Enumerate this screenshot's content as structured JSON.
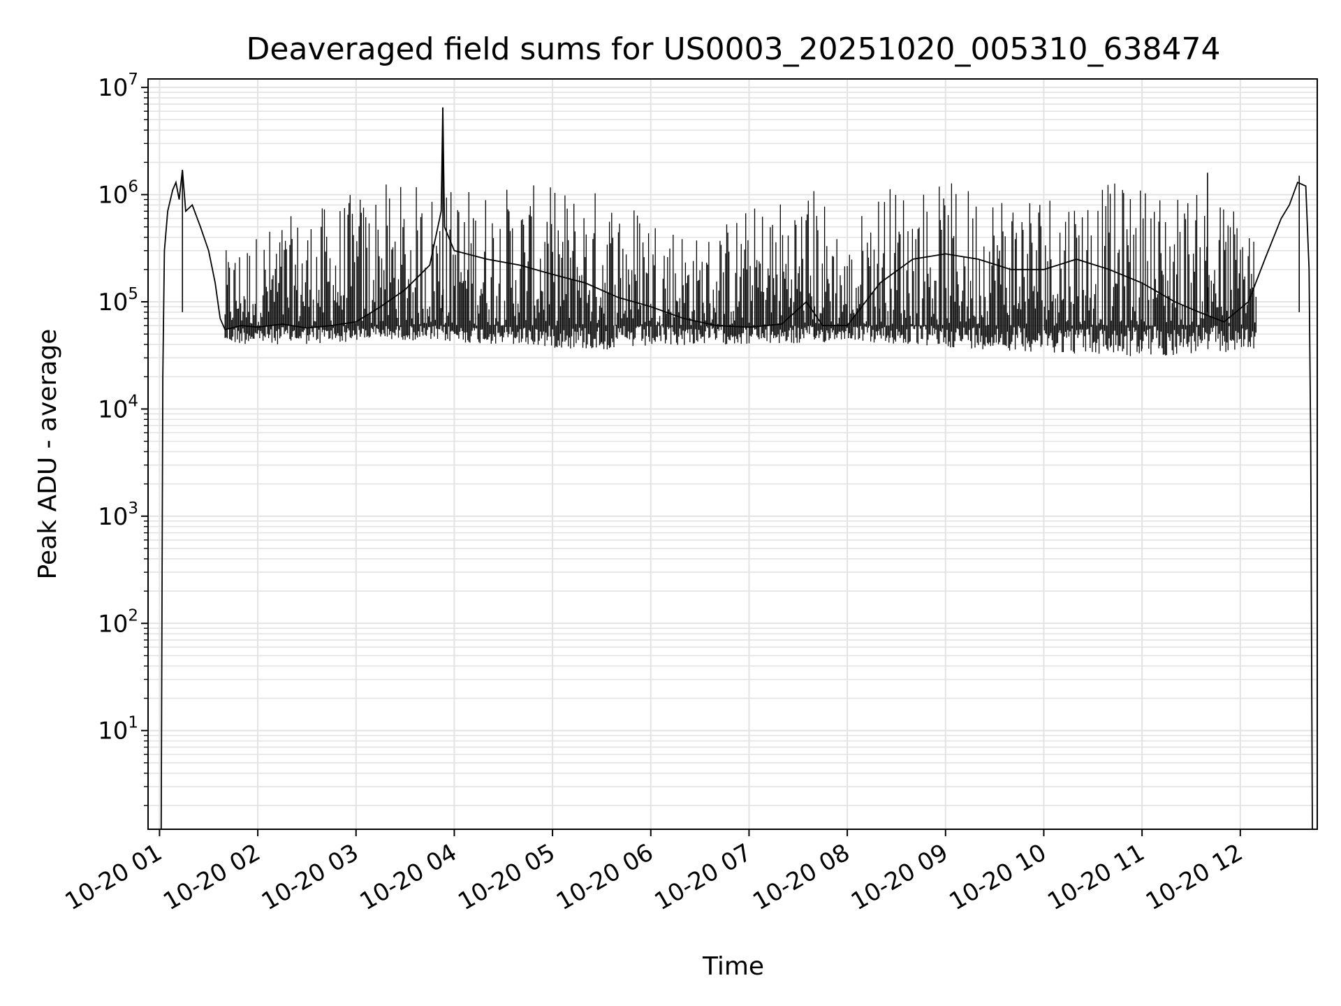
{
  "chart_data": {
    "type": "line",
    "title": "Deaveraged field sums for US0003_20251020_005310_638474",
    "xlabel": "Time",
    "ylabel": "Peak ADU - average",
    "y_scale": "log",
    "ylim": [
      1.2,
      12000000
    ],
    "xlim": [
      "2025-10-20T00:53",
      "2025-10-20T12:47"
    ],
    "grid": true,
    "line_color": "#000000",
    "x_ticks": [
      {
        "t": "2025-10-20T01:00",
        "label": "10-20 01"
      },
      {
        "t": "2025-10-20T02:00",
        "label": "10-20 02"
      },
      {
        "t": "2025-10-20T03:00",
        "label": "10-20 03"
      },
      {
        "t": "2025-10-20T04:00",
        "label": "10-20 04"
      },
      {
        "t": "2025-10-20T05:00",
        "label": "10-20 05"
      },
      {
        "t": "2025-10-20T06:00",
        "label": "10-20 06"
      },
      {
        "t": "2025-10-20T07:00",
        "label": "10-20 07"
      },
      {
        "t": "2025-10-20T08:00",
        "label": "10-20 08"
      },
      {
        "t": "2025-10-20T09:00",
        "label": "10-20 09"
      },
      {
        "t": "2025-10-20T10:00",
        "label": "10-20 10"
      },
      {
        "t": "2025-10-20T11:00",
        "label": "10-20 11"
      },
      {
        "t": "2025-10-20T12:00",
        "label": "10-20 12"
      }
    ],
    "y_ticks": [
      {
        "v": 10,
        "base": "10",
        "exp": "1"
      },
      {
        "v": 100,
        "base": "10",
        "exp": "2"
      },
      {
        "v": 1000,
        "base": "10",
        "exp": "3"
      },
      {
        "v": 10000,
        "base": "10",
        "exp": "4"
      },
      {
        "v": 100000,
        "base": "10",
        "exp": "5"
      },
      {
        "v": 1000000,
        "base": "10",
        "exp": "6"
      },
      {
        "v": 10000000,
        "base": "10",
        "exp": "7"
      }
    ],
    "series": [
      {
        "points": [
          [
            "2025-10-20T01:01",
            1.2
          ],
          [
            "2025-10-20T01:02",
            20000
          ],
          [
            "2025-10-20T01:03",
            300000
          ],
          [
            "2025-10-20T01:05",
            700000
          ],
          [
            "2025-10-20T01:08",
            1100000
          ],
          [
            "2025-10-20T01:10",
            1300000
          ],
          [
            "2025-10-20T01:12",
            900000
          ],
          [
            "2025-10-20T01:14",
            1700000
          ],
          [
            "2025-10-20T01:16",
            700000
          ],
          [
            "2025-10-20T01:20",
            800000
          ],
          [
            "2025-10-20T01:25",
            500000
          ],
          [
            "2025-10-20T01:30",
            300000
          ],
          [
            "2025-10-20T01:34",
            150000
          ],
          [
            "2025-10-20T01:37",
            70000
          ],
          [
            "2025-10-20T01:40",
            55000
          ],
          [
            "2025-10-20T01:50",
            60000
          ],
          [
            "2025-10-20T02:00",
            58000
          ],
          [
            "2025-10-20T02:15",
            62000
          ],
          [
            "2025-10-20T02:30",
            57000
          ],
          [
            "2025-10-20T02:45",
            60000
          ],
          [
            "2025-10-20T03:00",
            65000
          ],
          [
            "2025-10-20T03:15",
            90000
          ],
          [
            "2025-10-20T03:30",
            130000
          ],
          [
            "2025-10-20T03:45",
            220000
          ],
          [
            "2025-10-20T03:52",
            700000
          ],
          [
            "2025-10-20T03:53",
            6500000
          ],
          [
            "2025-10-20T03:54",
            500000
          ],
          [
            "2025-10-20T04:00",
            300000
          ],
          [
            "2025-10-20T04:20",
            250000
          ],
          [
            "2025-10-20T04:40",
            220000
          ],
          [
            "2025-10-20T05:00",
            180000
          ],
          [
            "2025-10-20T05:20",
            150000
          ],
          [
            "2025-10-20T05:40",
            110000
          ],
          [
            "2025-10-20T06:00",
            90000
          ],
          [
            "2025-10-20T06:20",
            70000
          ],
          [
            "2025-10-20T06:40",
            60000
          ],
          [
            "2025-10-20T07:00",
            58000
          ],
          [
            "2025-10-20T07:20",
            62000
          ],
          [
            "2025-10-20T07:35",
            100000
          ],
          [
            "2025-10-20T07:45",
            60000
          ],
          [
            "2025-10-20T08:00",
            60000
          ],
          [
            "2025-10-20T08:20",
            150000
          ],
          [
            "2025-10-20T08:40",
            250000
          ],
          [
            "2025-10-20T09:00",
            280000
          ],
          [
            "2025-10-20T09:20",
            250000
          ],
          [
            "2025-10-20T09:40",
            200000
          ],
          [
            "2025-10-20T10:00",
            200000
          ],
          [
            "2025-10-20T10:20",
            250000
          ],
          [
            "2025-10-20T10:40",
            200000
          ],
          [
            "2025-10-20T11:00",
            150000
          ],
          [
            "2025-10-20T11:20",
            100000
          ],
          [
            "2025-10-20T11:35",
            80000
          ],
          [
            "2025-10-20T11:50",
            65000
          ],
          [
            "2025-10-20T12:05",
            100000
          ],
          [
            "2025-10-20T12:15",
            250000
          ],
          [
            "2025-10-20T12:25",
            600000
          ],
          [
            "2025-10-20T12:30",
            800000
          ],
          [
            "2025-10-20T12:35",
            1300000
          ],
          [
            "2025-10-20T12:40",
            1200000
          ],
          [
            "2025-10-20T12:42",
            200000
          ],
          [
            "2025-10-20T12:43",
            5000
          ],
          [
            "2025-10-20T12:44",
            1.2
          ]
        ],
        "spikes": [
          [
            "2025-10-20T03:53",
            6500000
          ],
          [
            "2025-10-20T01:14",
            1700000
          ],
          [
            "2025-10-20T11:40",
            1600000
          ],
          [
            "2025-10-20T12:36",
            1500000
          ]
        ],
        "fluctuation_band": [
          [
            "2025-10-20T01:40",
            40000,
            300000
          ],
          [
            "2025-10-20T02:40",
            40000,
            800000
          ],
          [
            "2025-10-20T03:15",
            45000,
            1300000
          ],
          [
            "2025-10-20T05:30",
            35000,
            1200000
          ],
          [
            "2025-10-20T06:30",
            40000,
            400000
          ],
          [
            "2025-10-20T07:40",
            40000,
            1300000
          ],
          [
            "2025-10-20T08:00",
            45000,
            300000
          ],
          [
            "2025-10-20T08:20",
            40000,
            1300000
          ],
          [
            "2025-10-20T11:00",
            30000,
            1300000
          ],
          [
            "2025-10-20T12:10",
            35000,
            800000
          ]
        ]
      }
    ]
  }
}
